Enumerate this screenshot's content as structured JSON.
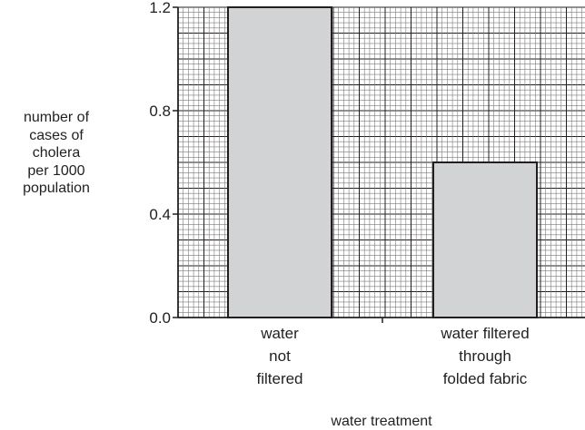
{
  "chart_data": {
    "type": "bar",
    "categories": [
      [
        "water",
        "not",
        "filtered"
      ],
      [
        "water filtered",
        "through",
        "folded fabric"
      ]
    ],
    "values": [
      1.2,
      0.6
    ],
    "ylabel": [
      "number of",
      "cases of",
      "cholera",
      "per 1000",
      "population"
    ],
    "xlabel": "water treatment",
    "ylim": [
      0.0,
      1.2
    ],
    "yticks": [
      "0.0",
      "0.4",
      "0.8",
      "1.2"
    ],
    "grid": true,
    "colors": {
      "bar_fill": "#d1d3d4",
      "bar_stroke": "#231f20",
      "grid_minor": "#7a7a7a",
      "grid_major": "#231f20",
      "axis": "#231f20"
    }
  }
}
